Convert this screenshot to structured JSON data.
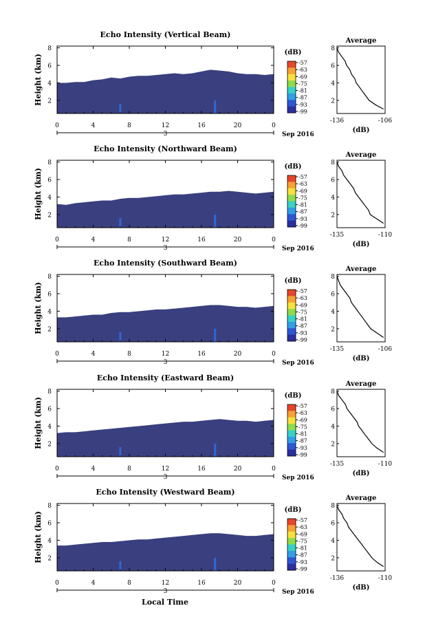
{
  "figure": {
    "x_axis_label": "Local Time",
    "date_label": "Sep 2016",
    "day_label": "3"
  },
  "chart_data": [
    {
      "type": "heatmap",
      "title": "Echo Intensity (Vertical Beam)",
      "ylabel": "Height (km)",
      "xlabel": "",
      "x_ticks": [
        "0",
        "4",
        "8",
        "12",
        "16",
        "20",
        "0"
      ],
      "y_ticks": [
        "2",
        "4",
        "6",
        "8"
      ],
      "xlim": [
        0,
        24
      ],
      "ylim": [
        0.5,
        8.2
      ],
      "colorbar": {
        "unit": "(dB)",
        "ticks": [
          "-57",
          "-63",
          "-69",
          "-75",
          "-81",
          "-87",
          "-93",
          "-99"
        ]
      },
      "echo_top_km": [
        4.0,
        4.0,
        4.1,
        4.1,
        4.3,
        4.4,
        4.6,
        4.5,
        4.7,
        4.8,
        4.8,
        4.9,
        5.0,
        5.1,
        5.0,
        5.1,
        5.3,
        5.5,
        5.4,
        5.3,
        5.1,
        5.0,
        5.0,
        4.9,
        5.0
      ],
      "average_profile": {
        "title": "Average",
        "xlabel": "(dB)",
        "x_ticks": [
          "-136",
          "-106"
        ],
        "y_ticks": [
          "2",
          "4",
          "6",
          "8"
        ],
        "xlim": [
          -136,
          -106
        ],
        "height_km": [
          8.0,
          7.5,
          7.0,
          6.5,
          6.0,
          5.5,
          5.0,
          4.5,
          4.0,
          3.5,
          3.0,
          2.5,
          2.0,
          1.5,
          1.0
        ],
        "power_db": [
          -136,
          -135,
          -133,
          -131,
          -130,
          -128,
          -127,
          -125,
          -124,
          -122,
          -120,
          -118,
          -116,
          -112,
          -107
        ]
      }
    },
    {
      "type": "heatmap",
      "title": "Echo Intensity (Northward Beam)",
      "ylabel": "Height (km)",
      "xlabel": "",
      "x_ticks": [
        "0",
        "4",
        "8",
        "12",
        "16",
        "20",
        "0"
      ],
      "y_ticks": [
        "2",
        "4",
        "6",
        "8"
      ],
      "xlim": [
        0,
        24
      ],
      "ylim": [
        0.5,
        8.2
      ],
      "colorbar": {
        "unit": "(dB)",
        "ticks": [
          "-57",
          "-63",
          "-69",
          "-75",
          "-81",
          "-87",
          "-93",
          "-99"
        ]
      },
      "echo_top_km": [
        3.2,
        3.1,
        3.3,
        3.4,
        3.5,
        3.6,
        3.6,
        3.8,
        3.9,
        3.9,
        4.0,
        4.1,
        4.2,
        4.3,
        4.3,
        4.4,
        4.5,
        4.6,
        4.6,
        4.7,
        4.6,
        4.5,
        4.4,
        4.5,
        4.6
      ],
      "average_profile": {
        "title": "Average",
        "xlabel": "(dB)",
        "x_ticks": [
          "-135",
          "-110"
        ],
        "y_ticks": [
          "2",
          "4",
          "6",
          "8"
        ],
        "xlim": [
          -136,
          -107
        ],
        "height_km": [
          8.0,
          7.5,
          7.0,
          6.5,
          6.0,
          5.5,
          5.0,
          4.5,
          4.0,
          3.5,
          3.0,
          2.5,
          2.0,
          1.5,
          1.0
        ],
        "power_db": [
          -136,
          -135,
          -133,
          -132,
          -130,
          -128,
          -126,
          -125,
          -123,
          -121,
          -119,
          -117,
          -116,
          -112,
          -108
        ]
      }
    },
    {
      "type": "heatmap",
      "title": "Echo Intensity (Southward Beam)",
      "ylabel": "Height (km)",
      "xlabel": "",
      "x_ticks": [
        "0",
        "4",
        "8",
        "12",
        "16",
        "20",
        "0"
      ],
      "y_ticks": [
        "2",
        "4",
        "6",
        "8"
      ],
      "xlim": [
        0,
        24
      ],
      "ylim": [
        0.5,
        8.2
      ],
      "colorbar": {
        "unit": "(dB)",
        "ticks": [
          "-57",
          "-63",
          "-69",
          "-75",
          "-81",
          "-87",
          "-93",
          "-99"
        ]
      },
      "echo_top_km": [
        3.3,
        3.3,
        3.4,
        3.5,
        3.6,
        3.6,
        3.8,
        3.9,
        3.9,
        4.0,
        4.1,
        4.2,
        4.2,
        4.3,
        4.4,
        4.5,
        4.6,
        4.7,
        4.7,
        4.6,
        4.5,
        4.5,
        4.4,
        4.5,
        4.6
      ],
      "average_profile": {
        "title": "Average",
        "xlabel": "(dB)",
        "x_ticks": [
          "-135",
          "-106"
        ],
        "y_ticks": [
          "2",
          "4",
          "6",
          "8"
        ],
        "xlim": [
          -136,
          -106
        ],
        "height_km": [
          8.0,
          7.5,
          7.0,
          6.5,
          6.0,
          5.5,
          5.0,
          4.5,
          4.0,
          3.5,
          3.0,
          2.5,
          2.0,
          1.5,
          1.0
        ],
        "power_db": [
          -136,
          -135,
          -134,
          -132,
          -130,
          -128,
          -127,
          -125,
          -123,
          -121,
          -119,
          -117,
          -115,
          -111,
          -107
        ]
      }
    },
    {
      "type": "heatmap",
      "title": "Echo Intensity (Eastward Beam)",
      "ylabel": "Height (km)",
      "xlabel": "",
      "x_ticks": [
        "0",
        "4",
        "8",
        "12",
        "16",
        "20",
        "0"
      ],
      "y_ticks": [
        "2",
        "4",
        "6",
        "8"
      ],
      "xlim": [
        0,
        24
      ],
      "ylim": [
        0.5,
        8.2
      ],
      "colorbar": {
        "unit": "(dB)",
        "ticks": [
          "-57",
          "-63",
          "-69",
          "-75",
          "-81",
          "-87",
          "-93",
          "-99"
        ]
      },
      "echo_top_km": [
        3.2,
        3.3,
        3.3,
        3.4,
        3.5,
        3.6,
        3.7,
        3.8,
        3.9,
        4.0,
        4.1,
        4.2,
        4.3,
        4.4,
        4.5,
        4.5,
        4.6,
        4.7,
        4.8,
        4.7,
        4.6,
        4.6,
        4.5,
        4.6,
        4.7
      ],
      "average_profile": {
        "title": "Average",
        "xlabel": "(dB)",
        "x_ticks": [
          "-135",
          "-110"
        ],
        "y_ticks": [
          "2",
          "4",
          "6",
          "8"
        ],
        "xlim": [
          -136,
          -107
        ],
        "height_km": [
          8.0,
          7.5,
          7.0,
          6.5,
          6.0,
          5.5,
          5.0,
          4.5,
          4.0,
          3.5,
          3.0,
          2.5,
          2.0,
          1.5,
          1.0
        ],
        "power_db": [
          -136,
          -135,
          -133,
          -131,
          -130,
          -128,
          -126,
          -124,
          -123,
          -121,
          -119,
          -117,
          -115,
          -112,
          -108
        ]
      }
    },
    {
      "type": "heatmap",
      "title": "Echo Intensity (Westward Beam)",
      "ylabel": "Height (km)",
      "xlabel": "",
      "x_ticks": [
        "0",
        "4",
        "8",
        "12",
        "16",
        "20",
        "0"
      ],
      "y_ticks": [
        "2",
        "4",
        "6",
        "8"
      ],
      "xlim": [
        0,
        24
      ],
      "ylim": [
        0.5,
        8.2
      ],
      "colorbar": {
        "unit": "(dB)",
        "ticks": [
          "-57",
          "-63",
          "-69",
          "-75",
          "-81",
          "-87",
          "-93",
          "-99"
        ]
      },
      "echo_top_km": [
        3.4,
        3.4,
        3.5,
        3.6,
        3.7,
        3.8,
        3.8,
        3.9,
        4.0,
        4.1,
        4.1,
        4.2,
        4.3,
        4.4,
        4.5,
        4.6,
        4.7,
        4.8,
        4.8,
        4.7,
        4.6,
        4.5,
        4.5,
        4.6,
        4.7
      ],
      "average_profile": {
        "title": "Average",
        "xlabel": "(dB)",
        "x_ticks": [
          "-136",
          "-110"
        ],
        "y_ticks": [
          "2",
          "4",
          "6",
          "8"
        ],
        "xlim": [
          -136,
          -107
        ],
        "height_km": [
          8.0,
          7.5,
          7.0,
          6.5,
          6.0,
          5.5,
          5.0,
          4.5,
          4.0,
          3.5,
          3.0,
          2.5,
          2.0,
          1.5,
          1.0
        ],
        "power_db": [
          -136,
          -135,
          -133,
          -132,
          -130,
          -129,
          -127,
          -125,
          -123,
          -121,
          -119,
          -117,
          -115,
          -112,
          -108
        ]
      }
    }
  ]
}
